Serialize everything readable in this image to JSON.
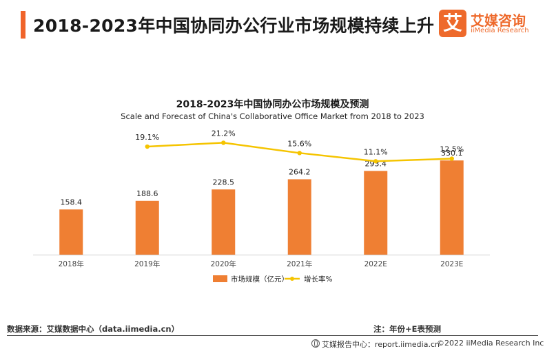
{
  "header": {
    "title": "2018-2023年中国协同办公行业市场规模持续上升",
    "logo_glyph": "艾",
    "logo_cn": "艾媒咨询",
    "logo_en": "iiMedia Research"
  },
  "colors": {
    "accent": "#f0642a",
    "bar": "#ef7f33",
    "line": "#f5c400",
    "logo": "#ee6a2c"
  },
  "chart_data": {
    "type": "bar",
    "title": "2018-2023年中国协同办公市场规模及预测",
    "subtitle": "Scale and Forecast of China's Collaborative Office Market from 2018 to 2023",
    "categories": [
      "2018年",
      "2019年",
      "2020年",
      "2021年",
      "2022E",
      "2023E"
    ],
    "series": [
      {
        "name": "市场规模（亿元）",
        "type": "bar",
        "values": [
          158.4,
          188.6,
          228.5,
          264.2,
          293.4,
          330.1
        ],
        "labels": [
          "158.4",
          "188.6",
          "228.5",
          "264.2",
          "293.4",
          "330.1"
        ]
      },
      {
        "name": "增长率%",
        "type": "line",
        "values": [
          null,
          19.1,
          21.2,
          15.6,
          11.1,
          12.5
        ],
        "labels": [
          "",
          "19.1%",
          "21.2%",
          "15.6%",
          "11.1%",
          "12.5%"
        ]
      }
    ],
    "bar_ylim": [
      0,
      410
    ],
    "line_ylim": [
      -40,
      24
    ],
    "legend": "bottom-center",
    "grid": false
  },
  "footer": {
    "source": "数据来源：艾媒数据中心（data.iimedia.cn）",
    "note": "注：年份+E表预测",
    "report": "艾媒报告中心：report.iimedia.cn",
    "copyright": "©2022  iiMedia Research  Inc"
  }
}
